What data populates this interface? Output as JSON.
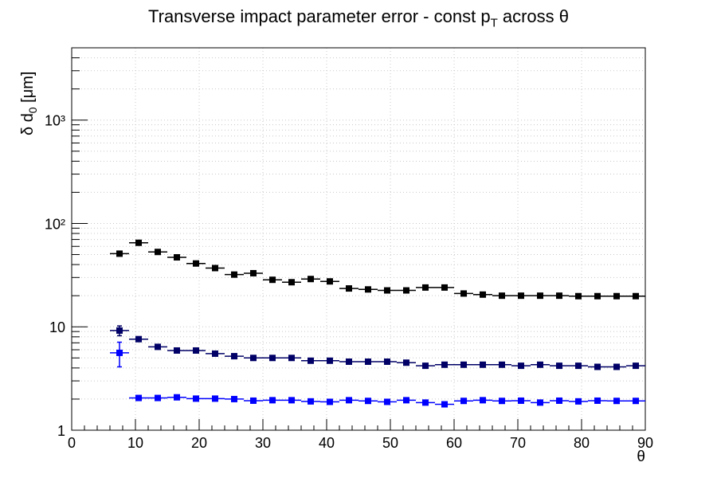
{
  "chart_data": {
    "type": "scatter",
    "title_pre": "Transverse impact parameter error - const p",
    "title_sub": "T",
    "title_post": " across θ",
    "xlabel": "θ",
    "ylabel_pre": "δ d",
    "ylabel_sub": "0",
    "ylabel_post": " [μm]",
    "xlim": [
      0,
      90
    ],
    "ylim": [
      1,
      5000
    ],
    "ylog": true,
    "grid": true,
    "x_ticks": [
      "0",
      "10",
      "20",
      "30",
      "40",
      "50",
      "60",
      "70",
      "80",
      "90"
    ],
    "y_ticks": [
      "1",
      "10",
      "10²",
      "10³"
    ],
    "x": [
      7.5,
      10.5,
      13.5,
      16.5,
      19.5,
      22.5,
      25.5,
      28.5,
      31.5,
      34.5,
      37.5,
      40.5,
      43.5,
      46.5,
      49.5,
      52.5,
      55.5,
      58.5,
      61.5,
      64.5,
      67.5,
      70.5,
      73.5,
      76.5,
      79.5,
      82.5,
      85.5,
      88.5
    ],
    "x_half_width": 1.5,
    "series": [
      {
        "color": "#000000",
        "values": [
          51,
          65,
          53,
          47,
          41,
          37,
          32,
          33,
          28.5,
          27,
          29,
          27.5,
          23.5,
          23,
          22.5,
          22.5,
          24,
          24,
          21,
          20.5,
          20,
          20,
          20,
          20,
          19.8,
          19.8,
          19.8,
          19.8
        ],
        "errors": [
          1.5,
          2,
          1.5,
          1.5,
          1.2,
          1,
          1,
          1,
          0.8,
          0.8,
          0.8,
          0.8,
          0.6,
          0.6,
          0.6,
          0.6,
          0.6,
          0.6,
          0.5,
          0.5,
          0.5,
          0.5,
          0.5,
          0.5,
          0.5,
          0.5,
          0.5,
          0.5
        ]
      },
      {
        "color": "#000066",
        "values": [
          9.2,
          7.6,
          6.4,
          5.9,
          5.9,
          5.5,
          5.2,
          5.0,
          5.0,
          5.0,
          4.7,
          4.7,
          4.6,
          4.6,
          4.6,
          4.5,
          4.2,
          4.3,
          4.3,
          4.3,
          4.3,
          4.2,
          4.3,
          4.2,
          4.2,
          4.1,
          4.1,
          4.2
        ],
        "errors": [
          1.0,
          0.3,
          0.2,
          0.15,
          0.15,
          0.12,
          0.12,
          0.1,
          0.1,
          0.1,
          0.1,
          0.1,
          0.1,
          0.1,
          0.1,
          0.1,
          0.1,
          0.1,
          0.1,
          0.1,
          0.1,
          0.1,
          0.1,
          0.1,
          0.1,
          0.1,
          0.1,
          0.1
        ]
      },
      {
        "color": "#0000ff",
        "values": [
          5.6,
          2.05,
          2.05,
          2.08,
          2.02,
          2.02,
          2.0,
          1.93,
          1.95,
          1.95,
          1.9,
          1.88,
          1.95,
          1.92,
          1.88,
          1.95,
          1.85,
          1.78,
          1.92,
          1.95,
          1.92,
          1.93,
          1.85,
          1.93,
          1.9,
          1.93,
          1.92,
          1.92
        ],
        "errors": [
          1.5,
          0.05,
          0.05,
          0.05,
          0.05,
          0.05,
          0.05,
          0.05,
          0.05,
          0.05,
          0.05,
          0.05,
          0.05,
          0.05,
          0.05,
          0.05,
          0.05,
          0.05,
          0.05,
          0.05,
          0.05,
          0.05,
          0.05,
          0.05,
          0.05,
          0.05,
          0.05,
          0.05
        ]
      }
    ]
  }
}
